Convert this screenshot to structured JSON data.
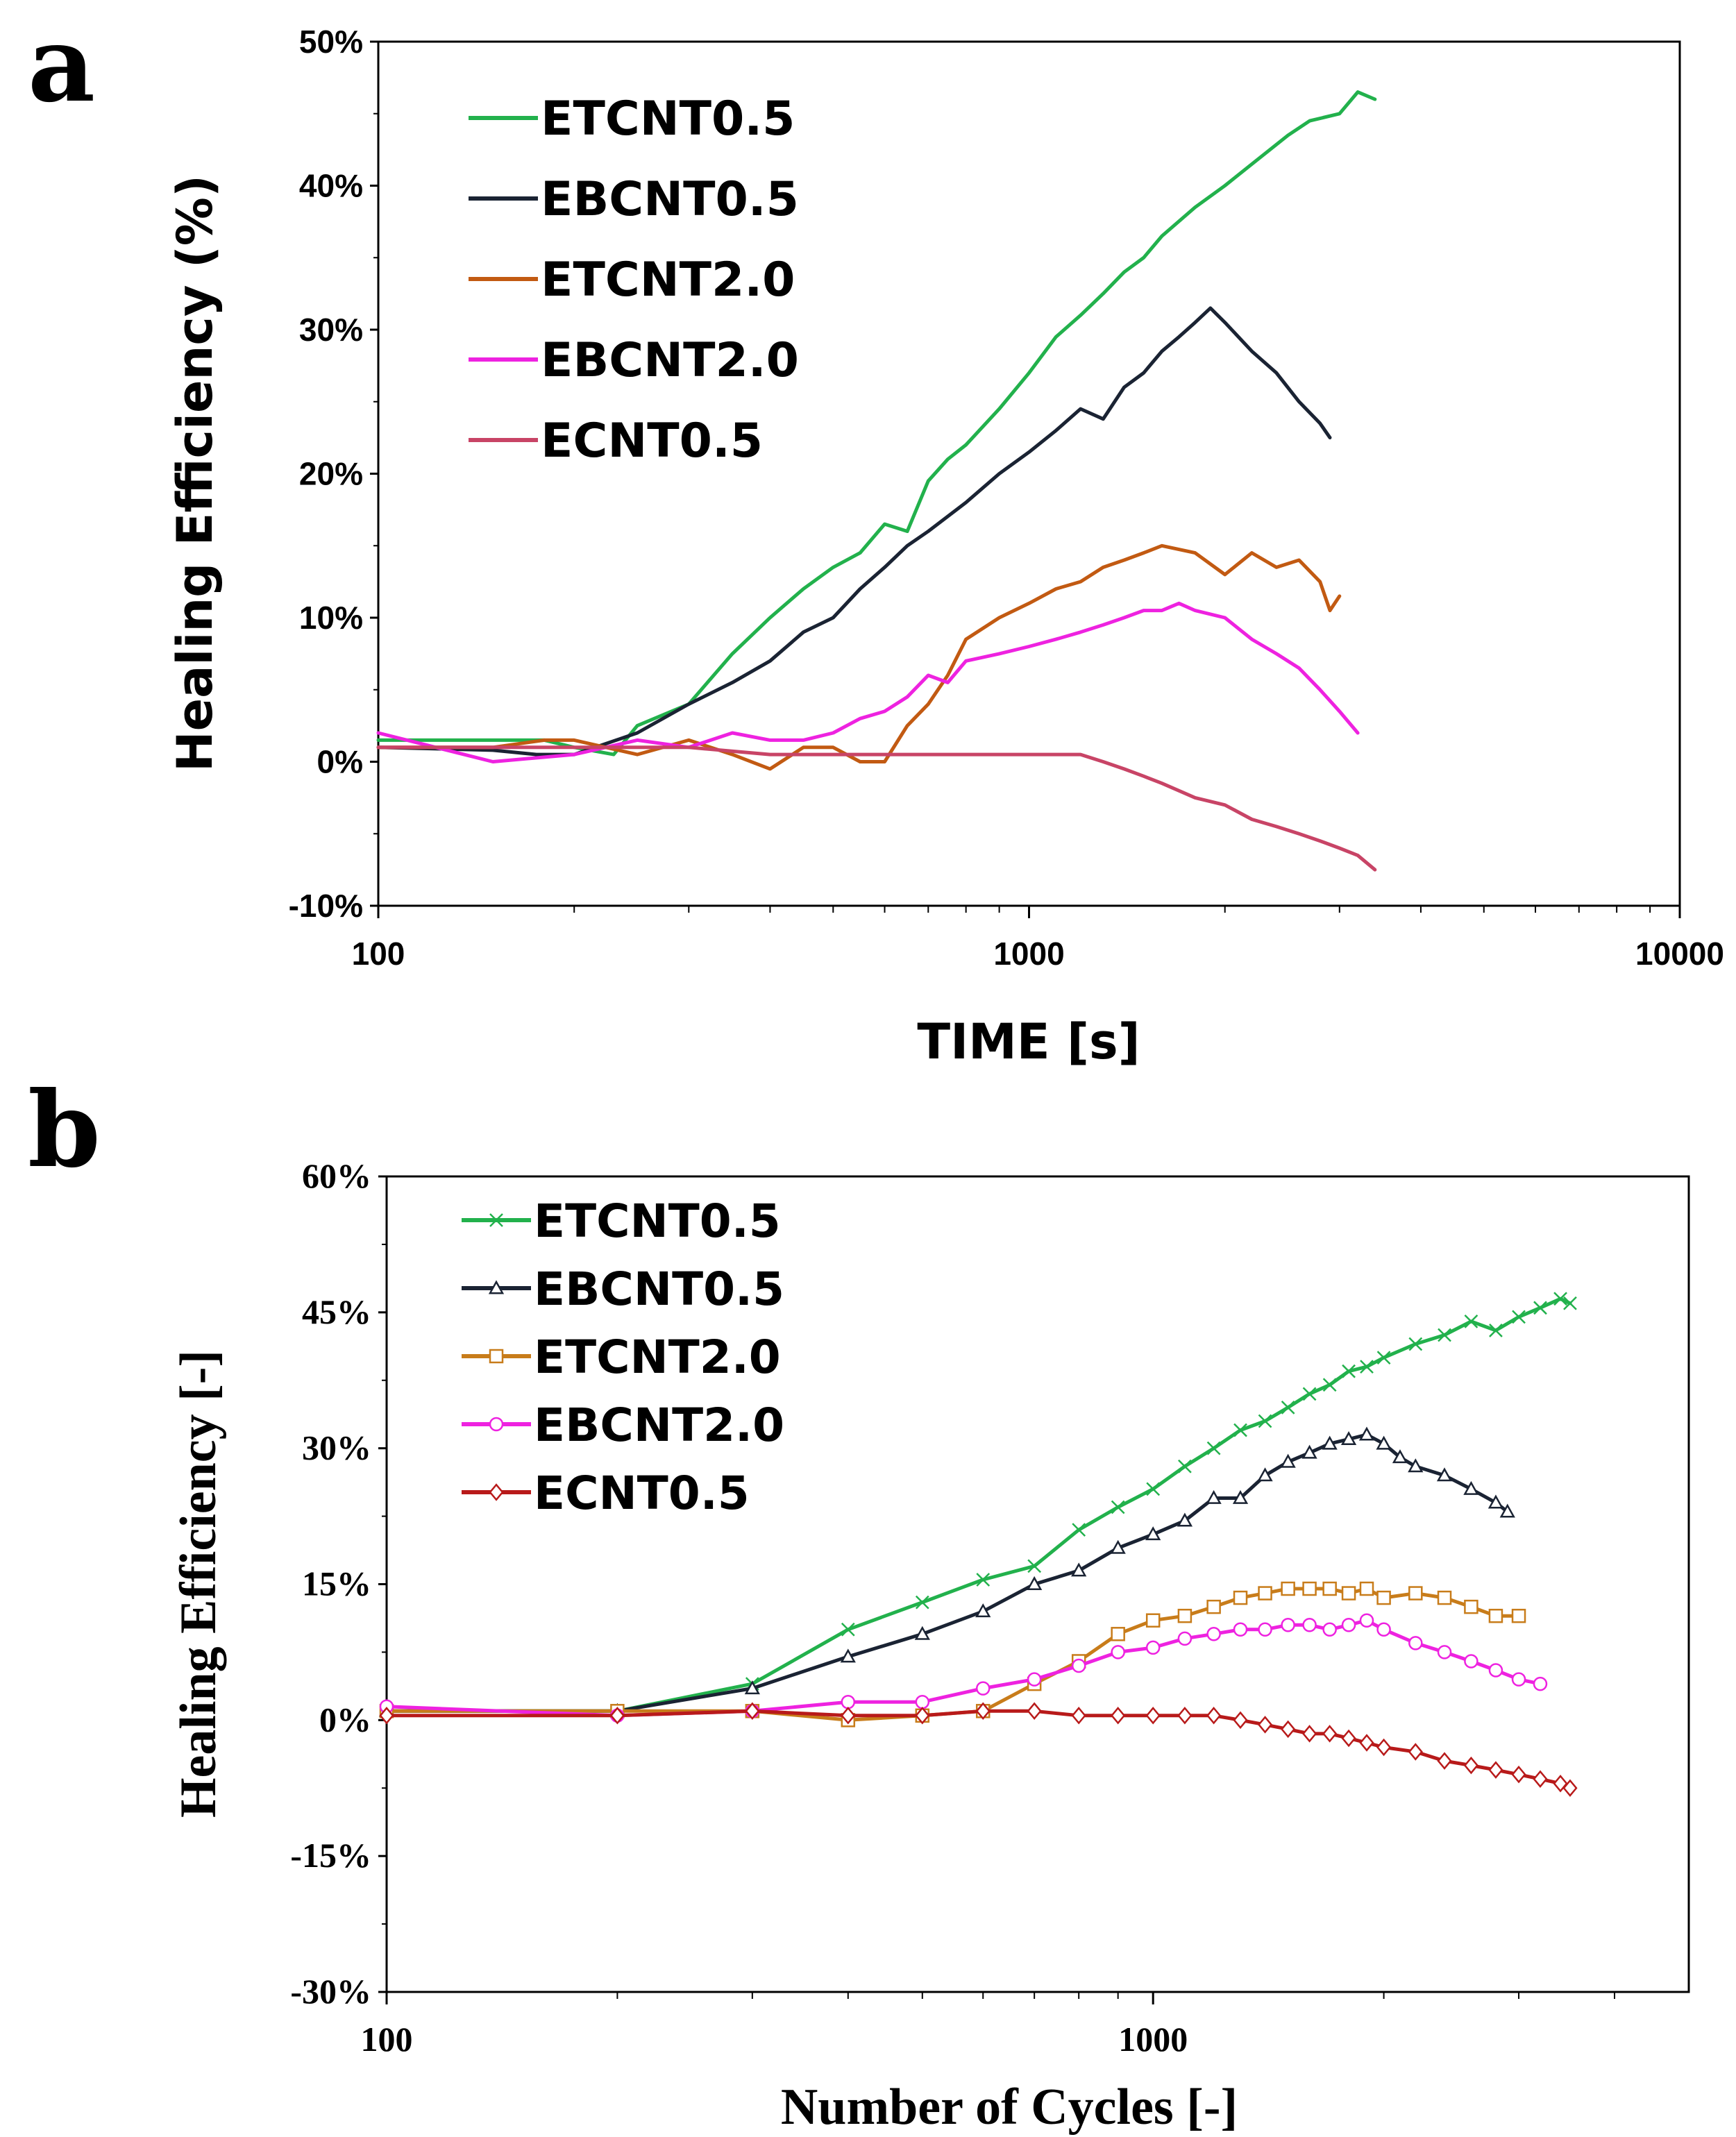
{
  "chart_data": [
    {
      "panel": "a",
      "type": "line",
      "title": "",
      "xlabel": "TIME [s]",
      "ylabel": "Healing Efficiency (%)",
      "xscale": "log",
      "xlim": [
        100,
        10000
      ],
      "ylim": [
        -10,
        50
      ],
      "xticks": [
        100,
        1000,
        10000
      ],
      "xtick_labels": [
        "100",
        "1000",
        "10000"
      ],
      "yticks": [
        -10,
        0,
        10,
        20,
        30,
        40,
        50
      ],
      "ytick_labels": [
        "-10%",
        "0%",
        "10%",
        "20%",
        "30%",
        "40%",
        "50%"
      ],
      "grid": false,
      "legend_position": "top-left",
      "series": [
        {
          "name": "ETCNT0.5",
          "color": "#22b14c",
          "x": [
            100,
            150,
            180,
            200,
            230,
            250,
            300,
            350,
            400,
            450,
            500,
            550,
            600,
            650,
            700,
            750,
            800,
            900,
            1000,
            1100,
            1200,
            1300,
            1400,
            1500,
            1600,
            1800,
            2000,
            2200,
            2500,
            2700,
            3000,
            3200,
            3400
          ],
          "y": [
            1.5,
            1.5,
            1.5,
            1.0,
            0.5,
            2.5,
            4.0,
            7.5,
            10.0,
            12.0,
            13.5,
            14.5,
            16.5,
            16.0,
            19.5,
            21.0,
            22.0,
            24.5,
            27.0,
            29.5,
            31.0,
            32.5,
            34.0,
            35.0,
            36.5,
            38.5,
            40.0,
            41.5,
            43.5,
            44.5,
            45.0,
            46.5,
            46.0
          ]
        },
        {
          "name": "EBCNT0.5",
          "color": "#1a2333",
          "x": [
            100,
            150,
            175,
            200,
            250,
            300,
            350,
            400,
            450,
            500,
            550,
            600,
            650,
            700,
            800,
            900,
            1000,
            1100,
            1200,
            1300,
            1400,
            1500,
            1600,
            1700,
            1800,
            1900,
            2000,
            2200,
            2400,
            2600,
            2800,
            2900
          ],
          "y": [
            1.0,
            0.8,
            0.5,
            0.5,
            2.0,
            4.0,
            5.5,
            7.0,
            9.0,
            10.0,
            12.0,
            13.5,
            15.0,
            16.0,
            18.0,
            20.0,
            21.5,
            23.0,
            24.5,
            23.8,
            26.0,
            27.0,
            28.5,
            29.5,
            30.5,
            31.5,
            30.5,
            28.5,
            27.0,
            25.0,
            23.5,
            22.5
          ]
        },
        {
          "name": "ETCNT2.0",
          "color": "#c25a12",
          "x": [
            100,
            150,
            180,
            200,
            250,
            300,
            350,
            400,
            450,
            500,
            550,
            600,
            650,
            700,
            750,
            800,
            900,
            1000,
            1100,
            1200,
            1300,
            1400,
            1500,
            1600,
            1800,
            2000,
            2200,
            2400,
            2600,
            2800,
            2900,
            3000
          ],
          "y": [
            1.0,
            1.0,
            1.5,
            1.5,
            0.5,
            1.5,
            0.5,
            -0.5,
            1.0,
            1.0,
            0.0,
            0.0,
            2.5,
            4.0,
            6.0,
            8.5,
            10.0,
            11.0,
            12.0,
            12.5,
            13.5,
            14.0,
            14.5,
            15.0,
            14.5,
            13.0,
            14.5,
            13.5,
            14.0,
            12.5,
            10.5,
            11.5
          ]
        },
        {
          "name": "EBCNT2.0",
          "color": "#ee22e0",
          "x": [
            100,
            150,
            200,
            250,
            300,
            350,
            400,
            450,
            500,
            550,
            600,
            650,
            700,
            750,
            800,
            900,
            1000,
            1100,
            1200,
            1300,
            1400,
            1500,
            1600,
            1700,
            1800,
            2000,
            2200,
            2400,
            2600,
            2800,
            3000,
            3200
          ],
          "y": [
            2.0,
            0.0,
            0.5,
            1.5,
            1.0,
            2.0,
            1.5,
            1.5,
            2.0,
            3.0,
            3.5,
            4.5,
            6.0,
            5.5,
            7.0,
            7.5,
            8.0,
            8.5,
            9.0,
            9.5,
            10.0,
            10.5,
            10.5,
            11.0,
            10.5,
            10.0,
            8.5,
            7.5,
            6.5,
            5.0,
            3.5,
            2.0
          ]
        },
        {
          "name": "ECNT0.5",
          "color": "#c84466",
          "x": [
            100,
            200,
            300,
            400,
            500,
            600,
            700,
            800,
            900,
            1000,
            1100,
            1200,
            1300,
            1400,
            1500,
            1600,
            1800,
            2000,
            2200,
            2400,
            2600,
            2800,
            3000,
            3200,
            3400
          ],
          "y": [
            1.0,
            1.0,
            1.0,
            0.5,
            0.5,
            0.5,
            0.5,
            0.5,
            0.5,
            0.5,
            0.5,
            0.5,
            0.0,
            -0.5,
            -1.0,
            -1.5,
            -2.5,
            -3.0,
            -4.0,
            -4.5,
            -5.0,
            -5.5,
            -6.0,
            -6.5,
            -7.5
          ]
        }
      ]
    },
    {
      "panel": "b",
      "type": "line",
      "title": "",
      "xlabel": "Number of Cycles [-]",
      "ylabel": "Healing Efficiency [-]",
      "xscale": "log",
      "xlim": [
        100,
        5000
      ],
      "ylim": [
        -30,
        60
      ],
      "xticks": [
        100,
        1000
      ],
      "xtick_labels": [
        "100",
        "1000"
      ],
      "yticks": [
        -30,
        -15,
        0,
        15,
        30,
        45,
        60
      ],
      "ytick_labels": [
        "-30%",
        "-15%",
        "0%",
        "15%",
        "30%",
        "45%",
        "60%"
      ],
      "grid": false,
      "legend_position": "top-left",
      "series": [
        {
          "name": "ETCNT0.5",
          "color": "#22b14c",
          "marker": "x",
          "x": [
            100,
            200,
            300,
            400,
            500,
            600,
            700,
            800,
            900,
            1000,
            1100,
            1200,
            1300,
            1400,
            1500,
            1600,
            1700,
            1800,
            1900,
            2000,
            2200,
            2400,
            2600,
            2800,
            3000,
            3200,
            3400,
            3500
          ],
          "y": [
            1.0,
            1.0,
            4.0,
            10.0,
            13.0,
            15.5,
            17.0,
            21.0,
            23.5,
            25.5,
            28.0,
            30.0,
            32.0,
            33.0,
            34.5,
            36.0,
            37.0,
            38.5,
            39.0,
            40.0,
            41.5,
            42.5,
            44.0,
            43.0,
            44.5,
            45.5,
            46.5,
            46.0
          ]
        },
        {
          "name": "EBCNT0.5",
          "color": "#1a2333",
          "marker": "triangle",
          "x": [
            100,
            200,
            300,
            400,
            500,
            600,
            700,
            800,
            900,
            1000,
            1100,
            1200,
            1300,
            1400,
            1500,
            1600,
            1700,
            1800,
            1900,
            2000,
            2100,
            2200,
            2400,
            2600,
            2800,
            2900
          ],
          "y": [
            1.0,
            1.0,
            3.5,
            7.0,
            9.5,
            12.0,
            15.0,
            16.5,
            19.0,
            20.5,
            22.0,
            24.5,
            24.5,
            27.0,
            28.5,
            29.5,
            30.5,
            31.0,
            31.5,
            30.5,
            29.0,
            28.0,
            27.0,
            25.5,
            24.0,
            23.0
          ]
        },
        {
          "name": "ETCNT2.0",
          "color": "#c87c1a",
          "marker": "square",
          "x": [
            100,
            200,
            300,
            400,
            500,
            600,
            700,
            800,
            900,
            1000,
            1100,
            1200,
            1300,
            1400,
            1500,
            1600,
            1700,
            1800,
            1900,
            2000,
            2200,
            2400,
            2600,
            2800,
            3000
          ],
          "y": [
            1.0,
            1.0,
            1.0,
            0.0,
            0.5,
            1.0,
            4.0,
            6.5,
            9.5,
            11.0,
            11.5,
            12.5,
            13.5,
            14.0,
            14.5,
            14.5,
            14.5,
            14.0,
            14.5,
            13.5,
            14.0,
            13.5,
            12.5,
            11.5,
            11.5
          ]
        },
        {
          "name": "EBCNT2.0",
          "color": "#ee22e0",
          "marker": "circle",
          "x": [
            100,
            200,
            300,
            400,
            500,
            600,
            700,
            800,
            900,
            1000,
            1100,
            1200,
            1300,
            1400,
            1500,
            1600,
            1700,
            1800,
            1900,
            2000,
            2200,
            2400,
            2600,
            2800,
            3000,
            3200
          ],
          "y": [
            1.5,
            0.5,
            1.0,
            2.0,
            2.0,
            3.5,
            4.5,
            6.0,
            7.5,
            8.0,
            9.0,
            9.5,
            10.0,
            10.0,
            10.5,
            10.5,
            10.0,
            10.5,
            11.0,
            10.0,
            8.5,
            7.5,
            6.5,
            5.5,
            4.5,
            4.0
          ]
        },
        {
          "name": "ECNT0.5",
          "color": "#b81a1a",
          "marker": "diamond",
          "x": [
            100,
            200,
            300,
            400,
            500,
            600,
            700,
            800,
            900,
            1000,
            1100,
            1200,
            1300,
            1400,
            1500,
            1600,
            1700,
            1800,
            1900,
            2000,
            2200,
            2400,
            2600,
            2800,
            3000,
            3200,
            3400,
            3500
          ],
          "y": [
            0.5,
            0.5,
            1.0,
            0.5,
            0.5,
            1.0,
            1.0,
            0.5,
            0.5,
            0.5,
            0.5,
            0.5,
            0.0,
            -0.5,
            -1.0,
            -1.5,
            -1.5,
            -2.0,
            -2.5,
            -3.0,
            -3.5,
            -4.5,
            -5.0,
            -5.5,
            -6.0,
            -6.5,
            -7.0,
            -7.5
          ]
        }
      ]
    }
  ],
  "panels": {
    "a_label": "a",
    "b_label": "b"
  }
}
